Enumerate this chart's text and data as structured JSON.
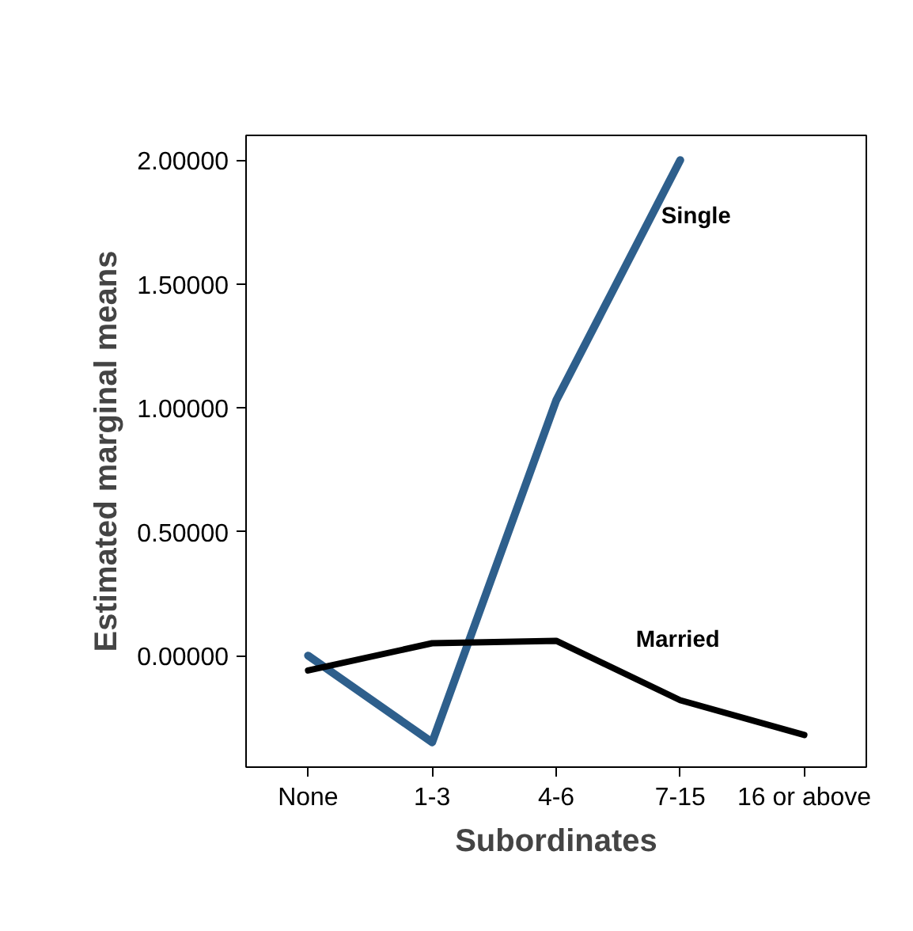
{
  "chart_data": {
    "type": "line",
    "xlabel": "Subordinates",
    "ylabel": "Estimated marginal means",
    "categories": [
      "None",
      "1-3",
      "4-6",
      "7-15",
      "16 or above"
    ],
    "series": [
      {
        "name": "Single",
        "color": "#2e5f8c",
        "values": [
          0.0,
          -0.35,
          1.03,
          2.0,
          null
        ]
      },
      {
        "name": "Married",
        "color": "#000000",
        "values": [
          -0.06,
          0.05,
          0.06,
          -0.18,
          -0.32
        ]
      }
    ],
    "ylim": [
      -0.45,
      2.1
    ],
    "yticks": [
      {
        "value": 0,
        "label": "0.00000"
      },
      {
        "value": 0.5,
        "label": "0.50000"
      },
      {
        "value": 1,
        "label": "1.00000"
      },
      {
        "value": 1.5,
        "label": "1.50000"
      },
      {
        "value": 2,
        "label": "2.00000"
      }
    ],
    "grid": false
  }
}
